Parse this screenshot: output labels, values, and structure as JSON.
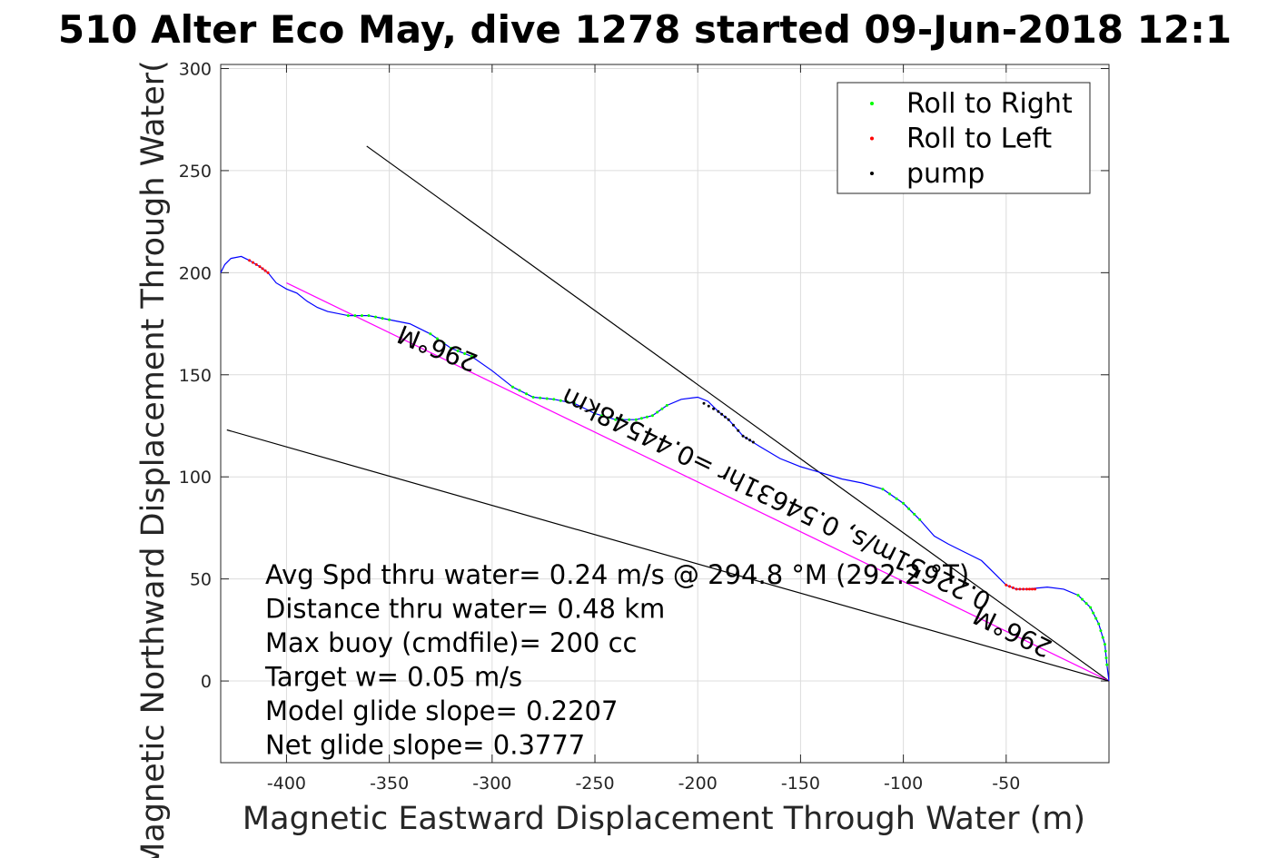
{
  "chart_data": {
    "type": "line",
    "title": "510 Alter Eco May, dive 1278 started 09-Jun-2018 12:1",
    "xlabel": "Magnetic Eastward Displacement Through Water (m)",
    "ylabel": "Magnetic Northward Displacement Through Water(",
    "xlim": [
      -432,
      0
    ],
    "ylim": [
      -40,
      302
    ],
    "xticks": [
      -400,
      -350,
      -300,
      -250,
      -200,
      -150,
      -100,
      -50
    ],
    "yticks": [
      0,
      50,
      100,
      150,
      200,
      250,
      300
    ],
    "grid": true,
    "legend_position": "top-right",
    "legend": [
      {
        "label": "Roll to Right",
        "color": "#00ff00"
      },
      {
        "label": "Roll to Left",
        "color": "#ff0000"
      },
      {
        "label": "pump",
        "color": "#000000"
      }
    ],
    "track": {
      "color": "#0000ff",
      "points": [
        [
          -432,
          200
        ],
        [
          -430,
          204
        ],
        [
          -427,
          207
        ],
        [
          -422,
          208
        ],
        [
          -418,
          206
        ],
        [
          -413,
          203
        ],
        [
          -409,
          200
        ],
        [
          -405,
          195
        ],
        [
          -400,
          192
        ],
        [
          -395,
          190
        ],
        [
          -390,
          186
        ],
        [
          -385,
          183
        ],
        [
          -380,
          181
        ],
        [
          -370,
          179
        ],
        [
          -360,
          179
        ],
        [
          -350,
          177
        ],
        [
          -340,
          175
        ],
        [
          -330,
          170
        ],
        [
          -320,
          163
        ],
        [
          -310,
          159
        ],
        [
          -300,
          152
        ],
        [
          -290,
          144
        ],
        [
          -280,
          139
        ],
        [
          -270,
          138
        ],
        [
          -260,
          136
        ],
        [
          -250,
          131
        ],
        [
          -240,
          128
        ],
        [
          -230,
          128
        ],
        [
          -222,
          130
        ],
        [
          -215,
          135
        ],
        [
          -208,
          138
        ],
        [
          -200,
          139
        ],
        [
          -195,
          137
        ],
        [
          -190,
          132
        ],
        [
          -185,
          128
        ],
        [
          -178,
          120
        ],
        [
          -170,
          115
        ],
        [
          -160,
          109
        ],
        [
          -150,
          105
        ],
        [
          -140,
          102
        ],
        [
          -130,
          99
        ],
        [
          -120,
          97
        ],
        [
          -110,
          94
        ],
        [
          -100,
          87
        ],
        [
          -92,
          79
        ],
        [
          -85,
          71
        ],
        [
          -78,
          67
        ],
        [
          -70,
          63
        ],
        [
          -62,
          59
        ],
        [
          -55,
          52
        ],
        [
          -50,
          47
        ],
        [
          -45,
          45
        ],
        [
          -40,
          45
        ],
        [
          -30,
          46
        ],
        [
          -22,
          45
        ],
        [
          -15,
          42
        ],
        [
          -9,
          36
        ],
        [
          -5,
          28
        ],
        [
          -2,
          18
        ],
        [
          -1,
          8
        ],
        [
          0,
          0
        ]
      ]
    },
    "roll_right_segments": [
      [
        [
          -370,
          179
        ],
        [
          -360,
          179
        ],
        [
          -350,
          177
        ]
      ],
      [
        [
          -330,
          170
        ],
        [
          -320,
          163
        ],
        [
          -310,
          159
        ]
      ],
      [
        [
          -290,
          144
        ],
        [
          -280,
          139
        ],
        [
          -270,
          138
        ],
        [
          -260,
          136
        ]
      ],
      [
        [
          -250,
          131
        ],
        [
          -240,
          128
        ],
        [
          -230,
          128
        ],
        [
          -222,
          130
        ],
        [
          -215,
          135
        ]
      ],
      [
        [
          -110,
          94
        ],
        [
          -100,
          87
        ],
        [
          -92,
          79
        ]
      ],
      [
        [
          -15,
          42
        ],
        [
          -9,
          36
        ],
        [
          -5,
          28
        ],
        [
          -2,
          18
        ],
        [
          -1,
          8
        ]
      ]
    ],
    "roll_left_segments": [
      [
        [
          -418,
          206
        ],
        [
          -413,
          203
        ],
        [
          -409,
          200
        ]
      ],
      [
        [
          -50,
          47
        ],
        [
          -45,
          45
        ],
        [
          -40,
          45
        ],
        [
          -36,
          45
        ]
      ]
    ],
    "pump_segments": [
      [
        [
          -197,
          136
        ],
        [
          -190,
          132
        ],
        [
          -185,
          128
        ],
        [
          -178,
          120
        ],
        [
          -173,
          117
        ]
      ]
    ],
    "lines": [
      {
        "name": "heading-line",
        "from": [
          -361,
          262
        ],
        "to": [
          0,
          0
        ],
        "color": "#000000"
      },
      {
        "name": "net-track-line",
        "from": [
          -400,
          195
        ],
        "to": [
          0,
          0
        ],
        "color": "#ff00ff"
      },
      {
        "name": "drift-line",
        "from": [
          -429,
          123
        ],
        "to": [
          0,
          0
        ],
        "color": "#000000"
      }
    ],
    "track_labels": [
      {
        "text": "296°M",
        "at": [
          -325,
          167
        ],
        "angle": 202
      },
      {
        "text": "0.22651m/s, 0.54631hr =0.44548km",
        "at": [
          -160,
          93
        ],
        "angle": 206
      },
      {
        "text": "296°M",
        "at": [
          -45,
          28
        ],
        "angle": 206
      }
    ],
    "annotations": [
      "Avg Spd thru water=  0.24 m/s @ 294.8 °M (292.2 °T)",
      "Distance thru water=  0.48 km",
      "Max buoy (cmdfile)= 200 cc",
      "Target w= 0.05 m/s",
      "Model glide slope= 0.2207",
      "Net glide slope= 0.3777"
    ]
  }
}
